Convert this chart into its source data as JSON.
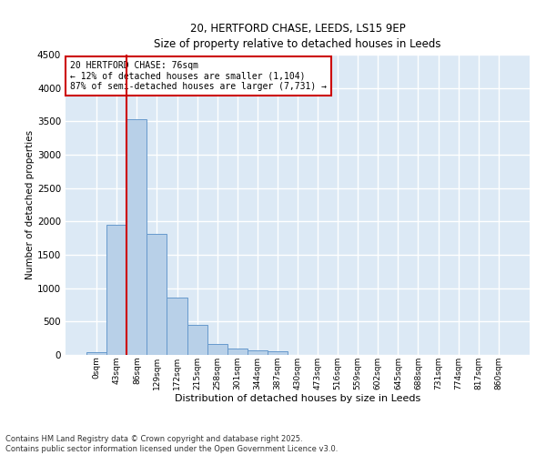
{
  "title_line1": "20, HERTFORD CHASE, LEEDS, LS15 9EP",
  "title_line2": "Size of property relative to detached houses in Leeds",
  "xlabel": "Distribution of detached houses by size in Leeds",
  "ylabel": "Number of detached properties",
  "bar_labels": [
    "0sqm",
    "43sqm",
    "86sqm",
    "129sqm",
    "172sqm",
    "215sqm",
    "258sqm",
    "301sqm",
    "344sqm",
    "387sqm",
    "430sqm",
    "473sqm",
    "516sqm",
    "559sqm",
    "602sqm",
    "645sqm",
    "688sqm",
    "731sqm",
    "774sqm",
    "817sqm",
    "860sqm"
  ],
  "bar_values": [
    40,
    1950,
    3530,
    1820,
    860,
    450,
    160,
    95,
    65,
    55,
    0,
    0,
    0,
    0,
    0,
    0,
    0,
    0,
    0,
    0,
    0
  ],
  "bar_color": "#b8d0e8",
  "bar_edge_color": "#6699cc",
  "background_color": "#dce9f5",
  "grid_color": "#ffffff",
  "ylim": [
    0,
    4500
  ],
  "yticks": [
    0,
    500,
    1000,
    1500,
    2000,
    2500,
    3000,
    3500,
    4000,
    4500
  ],
  "vline_color": "#cc0000",
  "annotation_text": "20 HERTFORD CHASE: 76sqm\n← 12% of detached houses are smaller (1,104)\n87% of semi-detached houses are larger (7,731) →",
  "annotation_box_color": "#cc0000",
  "footer_line1": "Contains HM Land Registry data © Crown copyright and database right 2025.",
  "footer_line2": "Contains public sector information licensed under the Open Government Licence v3.0.",
  "fig_facecolor": "#ffffff"
}
